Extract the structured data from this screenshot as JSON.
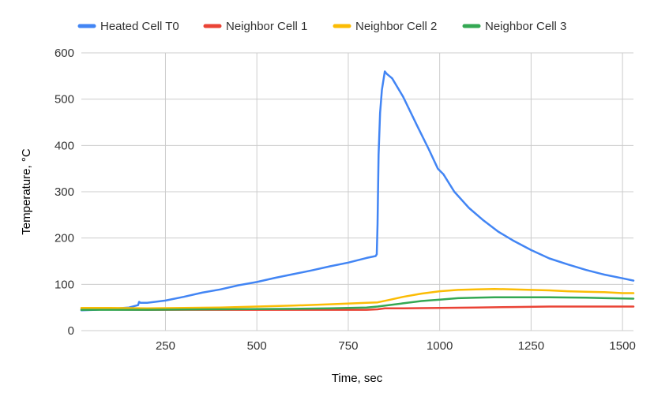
{
  "chart_data": {
    "type": "line",
    "title": "",
    "xlabel": "Time, sec",
    "ylabel": "Temperature, °C",
    "xlim": [
      20,
      1530
    ],
    "ylim": [
      0,
      600
    ],
    "x_ticks": [
      250,
      500,
      750,
      1000,
      1250,
      1500
    ],
    "y_ticks": [
      0,
      100,
      200,
      300,
      400,
      500,
      600
    ],
    "grid": true,
    "legend_position": "top",
    "series": [
      {
        "name": "Heated Cell T0",
        "color": "#4285f4",
        "points": [
          [
            20,
            44
          ],
          [
            60,
            45
          ],
          [
            100,
            47
          ],
          [
            150,
            50
          ],
          [
            175,
            55
          ],
          [
            178,
            62
          ],
          [
            182,
            60
          ],
          [
            200,
            60
          ],
          [
            250,
            65
          ],
          [
            300,
            73
          ],
          [
            350,
            82
          ],
          [
            400,
            89
          ],
          [
            450,
            98
          ],
          [
            500,
            105
          ],
          [
            550,
            114
          ],
          [
            600,
            122
          ],
          [
            650,
            130
          ],
          [
            700,
            139
          ],
          [
            750,
            147
          ],
          [
            800,
            157
          ],
          [
            825,
            161
          ],
          [
            828,
            165
          ],
          [
            830,
            230
          ],
          [
            833,
            380
          ],
          [
            837,
            470
          ],
          [
            842,
            520
          ],
          [
            847,
            545
          ],
          [
            850,
            560
          ],
          [
            855,
            555
          ],
          [
            870,
            545
          ],
          [
            900,
            505
          ],
          [
            940,
            440
          ],
          [
            970,
            392
          ],
          [
            995,
            350
          ],
          [
            1010,
            338
          ],
          [
            1040,
            300
          ],
          [
            1080,
            265
          ],
          [
            1120,
            238
          ],
          [
            1160,
            214
          ],
          [
            1200,
            195
          ],
          [
            1250,
            174
          ],
          [
            1300,
            156
          ],
          [
            1350,
            143
          ],
          [
            1400,
            131
          ],
          [
            1450,
            121
          ],
          [
            1500,
            113
          ],
          [
            1530,
            108
          ]
        ]
      },
      {
        "name": "Neighbor Cell 1",
        "color": "#ea4335",
        "points": [
          [
            20,
            46
          ],
          [
            200,
            45
          ],
          [
            400,
            45
          ],
          [
            600,
            45
          ],
          [
            800,
            45
          ],
          [
            830,
            46
          ],
          [
            850,
            48
          ],
          [
            900,
            48
          ],
          [
            1000,
            49
          ],
          [
            1100,
            50
          ],
          [
            1200,
            51
          ],
          [
            1300,
            52
          ],
          [
            1400,
            52
          ],
          [
            1530,
            52
          ]
        ]
      },
      {
        "name": "Neighbor Cell 2",
        "color": "#fbbc04",
        "points": [
          [
            20,
            49
          ],
          [
            100,
            49
          ],
          [
            200,
            48
          ],
          [
            300,
            49
          ],
          [
            400,
            50
          ],
          [
            500,
            52
          ],
          [
            600,
            54
          ],
          [
            700,
            57
          ],
          [
            800,
            60
          ],
          [
            830,
            61
          ],
          [
            860,
            66
          ],
          [
            900,
            73
          ],
          [
            950,
            80
          ],
          [
            1000,
            85
          ],
          [
            1050,
            88
          ],
          [
            1100,
            89
          ],
          [
            1150,
            90
          ],
          [
            1200,
            89
          ],
          [
            1250,
            88
          ],
          [
            1300,
            87
          ],
          [
            1350,
            85
          ],
          [
            1400,
            84
          ],
          [
            1450,
            83
          ],
          [
            1500,
            81
          ],
          [
            1530,
            81
          ]
        ]
      },
      {
        "name": "Neighbor Cell 3",
        "color": "#34a853",
        "points": [
          [
            20,
            45
          ],
          [
            200,
            45
          ],
          [
            400,
            46
          ],
          [
            600,
            47
          ],
          [
            700,
            48
          ],
          [
            800,
            50
          ],
          [
            830,
            52
          ],
          [
            860,
            55
          ],
          [
            900,
            59
          ],
          [
            950,
            64
          ],
          [
            1000,
            67
          ],
          [
            1050,
            70
          ],
          [
            1100,
            71
          ],
          [
            1150,
            72
          ],
          [
            1200,
            72
          ],
          [
            1300,
            72
          ],
          [
            1400,
            71
          ],
          [
            1530,
            69
          ]
        ]
      }
    ]
  }
}
